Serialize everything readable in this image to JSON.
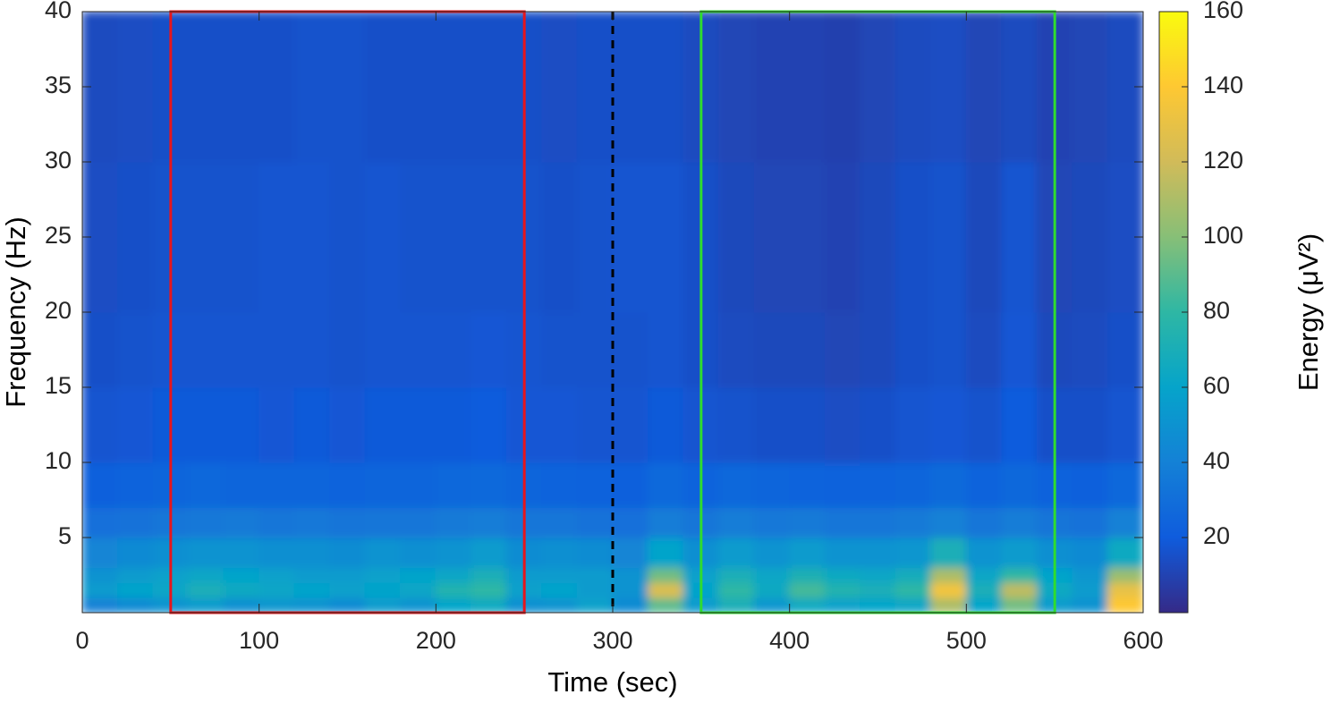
{
  "chart_data": {
    "type": "heatmap",
    "xlabel": "Time (sec)",
    "ylabel": "Frequency (Hz)",
    "colorbar_label": "Energy (μV²)",
    "x_edges": [
      0,
      20,
      40,
      60,
      80,
      100,
      120,
      140,
      160,
      180,
      200,
      220,
      240,
      260,
      280,
      300,
      320,
      340,
      360,
      380,
      400,
      420,
      440,
      460,
      480,
      500,
      520,
      540,
      560,
      580,
      600
    ],
    "y_edges": [
      0,
      1,
      2,
      3,
      5,
      7,
      10,
      15,
      20,
      30,
      40
    ],
    "values": [
      [
        40,
        45,
        50,
        55,
        48,
        52,
        50,
        45,
        55,
        50,
        60,
        65,
        48,
        50,
        58,
        45,
        90,
        55,
        70,
        52,
        65,
        58,
        60,
        62,
        110,
        60,
        95,
        55,
        50,
        140
      ],
      [
        55,
        60,
        62,
        70,
        65,
        62,
        60,
        58,
        60,
        62,
        75,
        80,
        58,
        60,
        55,
        50,
        125,
        60,
        80,
        65,
        85,
        75,
        70,
        80,
        135,
        70,
        115,
        65,
        55,
        130
      ],
      [
        50,
        55,
        58,
        62,
        60,
        58,
        55,
        55,
        58,
        60,
        62,
        70,
        55,
        55,
        55,
        50,
        95,
        58,
        70,
        62,
        72,
        65,
        62,
        68,
        110,
        62,
        80,
        60,
        52,
        105
      ],
      [
        42,
        45,
        48,
        50,
        50,
        48,
        48,
        46,
        50,
        48,
        50,
        55,
        46,
        48,
        46,
        42,
        60,
        48,
        55,
        50,
        55,
        50,
        50,
        52,
        70,
        50,
        55,
        48,
        45,
        65
      ],
      [
        30,
        32,
        34,
        35,
        36,
        34,
        35,
        33,
        34,
        34,
        36,
        38,
        34,
        34,
        32,
        30,
        38,
        34,
        38,
        35,
        36,
        34,
        34,
        36,
        40,
        34,
        38,
        33,
        32,
        40
      ],
      [
        22,
        24,
        25,
        26,
        25,
        25,
        25,
        24,
        25,
        25,
        26,
        27,
        25,
        24,
        23,
        22,
        27,
        24,
        26,
        25,
        24,
        23,
        24,
        25,
        28,
        24,
        26,
        23,
        22,
        26
      ],
      [
        17,
        18,
        19,
        19,
        19,
        18,
        19,
        18,
        19,
        19,
        19,
        20,
        18,
        18,
        17,
        17,
        19,
        17,
        16,
        15,
        15,
        14,
        15,
        17,
        18,
        16,
        20,
        15,
        15,
        17
      ],
      [
        15,
        16,
        17,
        17,
        17,
        17,
        17,
        16,
        17,
        17,
        17,
        18,
        17,
        16,
        16,
        16,
        17,
        15,
        13,
        12,
        12,
        11,
        12,
        15,
        16,
        13,
        18,
        12,
        13,
        15
      ],
      [
        14,
        15,
        16,
        16,
        16,
        17,
        17,
        16,
        17,
        16,
        16,
        16,
        16,
        15,
        16,
        17,
        17,
        15,
        12,
        11,
        11,
        10,
        12,
        15,
        16,
        12,
        17,
        11,
        12,
        14
      ],
      [
        13,
        14,
        15,
        15,
        15,
        15,
        16,
        16,
        15,
        15,
        15,
        15,
        15,
        14,
        15,
        15,
        15,
        13,
        11,
        10,
        10,
        9,
        11,
        13,
        14,
        11,
        13,
        10,
        11,
        13
      ]
    ],
    "xlim": [
      0,
      600
    ],
    "xticks": [
      0,
      100,
      200,
      300,
      400,
      500,
      600
    ],
    "ylim": [
      0,
      40
    ],
    "yticks": [
      5,
      10,
      15,
      20,
      25,
      30,
      35,
      40
    ],
    "clim": [
      0,
      160
    ],
    "cticks": [
      20,
      40,
      60,
      80,
      100,
      120,
      140,
      160
    ],
    "colormap": [
      "#352a87",
      "#0f5cdd",
      "#1481d6",
      "#06a4ca",
      "#2eb7a4",
      "#87bf77",
      "#d1bb59",
      "#fec832",
      "#f9fb0e"
    ],
    "regions": [
      {
        "start": 50,
        "end": 250,
        "color": "#e8151b"
      },
      {
        "start": 350,
        "end": 550,
        "color": "#2fdc2f"
      }
    ],
    "vline": {
      "x": 300,
      "color": "#000000"
    }
  }
}
